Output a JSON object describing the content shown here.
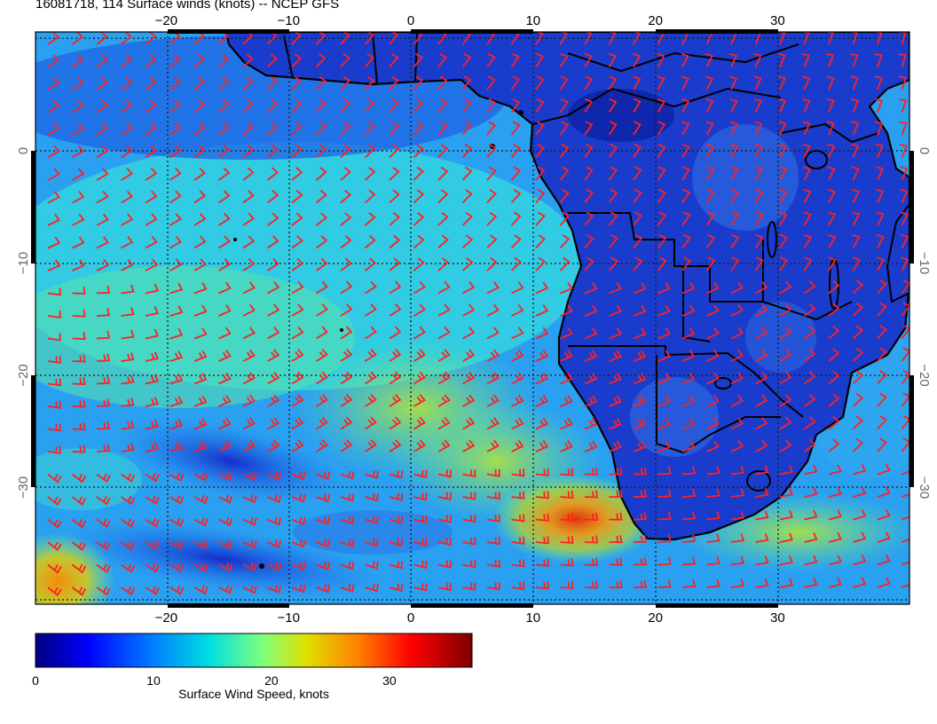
{
  "title": "16081718, 114 Surface winds (knots) -- NCEP GFS",
  "map": {
    "type": "wind-speed-map",
    "region": "Southern Africa / South Atlantic",
    "lon_range": [
      -31,
      40
    ],
    "lat_range": [
      -40,
      10
    ],
    "lon_ticks": [
      -20,
      -10,
      0,
      10,
      20,
      30
    ],
    "lat_ticks": [
      0,
      -10,
      -20,
      -30
    ],
    "lon_tick_labels": [
      "−20",
      "−10",
      "0",
      "10",
      "20",
      "30"
    ],
    "lat_tick_labels": [
      "0",
      "−10",
      "−20",
      "−30"
    ],
    "grid": true,
    "barb_color": "#ff2020",
    "coast_color": "#000000"
  },
  "colorbar": {
    "title": "Surface Wind Speed, knots",
    "range": [
      0,
      37
    ],
    "ticks": [
      0,
      10,
      20,
      30
    ],
    "tick_labels": [
      "0",
      "10",
      "20",
      "30"
    ],
    "colors": [
      "#00007f",
      "#0000ff",
      "#007fff",
      "#00e0e0",
      "#7fff7f",
      "#e0e000",
      "#ff7f00",
      "#ff0000",
      "#7f0000"
    ]
  }
}
